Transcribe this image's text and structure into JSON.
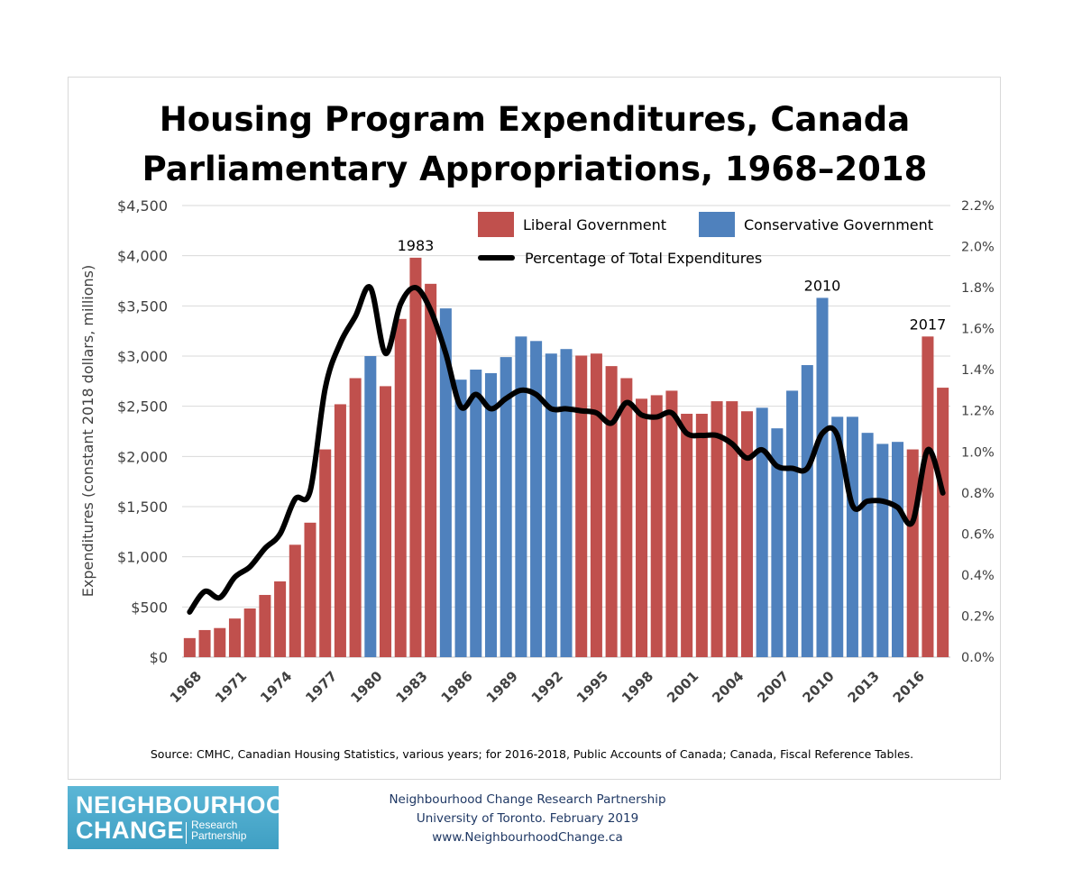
{
  "chart_data": {
    "type": "bar",
    "title": "Housing Program Expenditures, Canada",
    "subtitle": "Parliamentary Appropriations, 1968–2018",
    "ylabel": "Expenditures (constant 2018 dollars, millions)",
    "y2label": "",
    "ylim": [
      0,
      4500
    ],
    "y2lim": [
      0,
      2.2
    ],
    "yticks": [
      "$0",
      "$500",
      "$1,000",
      "$1,500",
      "$2,000",
      "$2,500",
      "$3,000",
      "$3,500",
      "$4,000",
      "$4,500"
    ],
    "y2ticks": [
      "0.0%",
      "0.2%",
      "0.4%",
      "0.6%",
      "0.8%",
      "1.0%",
      "1.2%",
      "1.4%",
      "1.6%",
      "1.8%",
      "2.0%",
      "2.2%"
    ],
    "xticks": [
      "1968",
      "1971",
      "1974",
      "1977",
      "1980",
      "1983",
      "1986",
      "1989",
      "1992",
      "1995",
      "1998",
      "2001",
      "2004",
      "2007",
      "2010",
      "2013",
      "2016"
    ],
    "grid": true,
    "legend_placement": "top",
    "legend": [
      "Liberal Government",
      "Conservative Government",
      "Percentage of Total Expenditures"
    ],
    "colors": {
      "liberal": "#c0504d",
      "conservative": "#4f81bd",
      "line": "#000000",
      "grid": "#d9d9d9"
    },
    "x": [
      1968,
      1969,
      1970,
      1971,
      1972,
      1973,
      1974,
      1975,
      1976,
      1977,
      1978,
      1979,
      1980,
      1981,
      1982,
      1983,
      1984,
      1985,
      1986,
      1987,
      1988,
      1989,
      1990,
      1991,
      1992,
      1993,
      1994,
      1995,
      1996,
      1997,
      1998,
      1999,
      2000,
      2001,
      2002,
      2003,
      2004,
      2005,
      2006,
      2007,
      2008,
      2009,
      2010,
      2011,
      2012,
      2013,
      2014,
      2015,
      2016,
      2017,
      2018
    ],
    "expenditures": [
      190,
      270,
      290,
      385,
      485,
      620,
      755,
      1120,
      1340,
      2070,
      2520,
      2780,
      3000,
      2700,
      3370,
      3980,
      3720,
      3475,
      2765,
      2865,
      2830,
      2990,
      3195,
      3150,
      3025,
      3070,
      3005,
      3025,
      2900,
      2780,
      2575,
      2610,
      2655,
      2425,
      2425,
      2550,
      2550,
      2450,
      2485,
      2280,
      2655,
      2910,
      3580,
      2395,
      2395,
      2235,
      2125,
      2145,
      2070,
      3195,
      2685
    ],
    "government": [
      "L",
      "L",
      "L",
      "L",
      "L",
      "L",
      "L",
      "L",
      "L",
      "L",
      "L",
      "L",
      "C",
      "L",
      "L",
      "L",
      "L",
      "C",
      "C",
      "C",
      "C",
      "C",
      "C",
      "C",
      "C",
      "C",
      "L",
      "L",
      "L",
      "L",
      "L",
      "L",
      "L",
      "L",
      "L",
      "L",
      "L",
      "L",
      "C",
      "C",
      "C",
      "C",
      "C",
      "C",
      "C",
      "C",
      "C",
      "C",
      "L",
      "L",
      "L"
    ],
    "percentage": [
      0.22,
      0.32,
      0.29,
      0.39,
      0.44,
      0.53,
      0.6,
      0.77,
      0.81,
      1.31,
      1.53,
      1.66,
      1.8,
      1.48,
      1.72,
      1.8,
      1.69,
      1.48,
      1.22,
      1.28,
      1.21,
      1.26,
      1.3,
      1.28,
      1.21,
      1.21,
      1.2,
      1.19,
      1.14,
      1.24,
      1.18,
      1.17,
      1.19,
      1.09,
      1.08,
      1.08,
      1.04,
      0.97,
      1.01,
      0.93,
      0.92,
      0.92,
      1.09,
      1.08,
      0.74,
      0.76,
      0.76,
      0.73,
      0.66,
      1.01,
      0.8
    ],
    "annotations": [
      {
        "year": 1983,
        "text": "1983"
      },
      {
        "year": 2010,
        "text": "2010"
      },
      {
        "year": 2017,
        "text": "2017"
      }
    ],
    "source": "Source: CMHC, Canadian Housing Statistics, various years; for 2016-2018, Public Accounts of Canada; Canada, Fiscal Reference Tables."
  },
  "footer": {
    "logo_line1": "NEIGHBOURHOOD",
    "logo_line2": "CHANGE",
    "logo_line3": "Research",
    "logo_line4": "Partnership",
    "credit_line1": "Neighbourhood Change Research Partnership",
    "credit_line2": "University of Toronto. February 2019",
    "credit_line3": "www.NeighbourhoodChange.ca"
  }
}
